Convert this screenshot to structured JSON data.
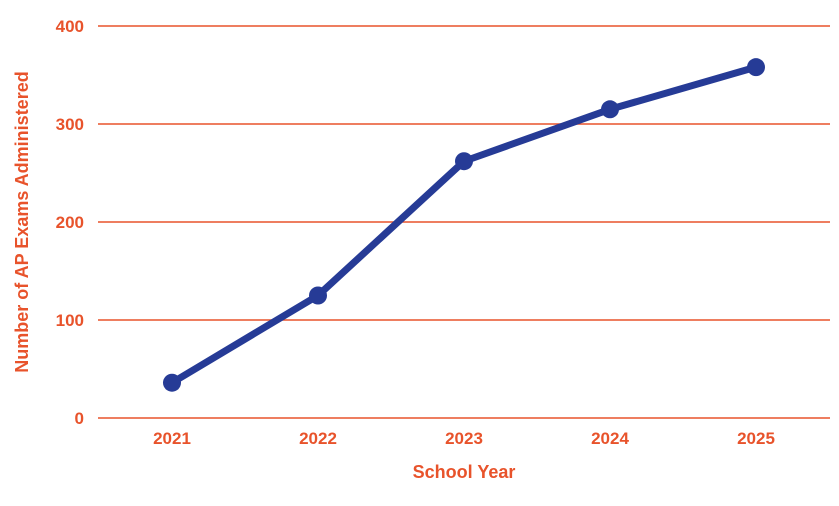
{
  "chart_data": {
    "type": "line",
    "title": "",
    "xlabel": "School Year",
    "ylabel": "Number of AP Exams Administered",
    "categories": [
      "2021",
      "2022",
      "2023",
      "2024",
      "2025"
    ],
    "series": [
      {
        "values": [
          36,
          125,
          262,
          315,
          358
        ]
      }
    ],
    "ylim": [
      0,
      400
    ],
    "yticks": [
      0,
      100,
      200,
      300,
      400
    ],
    "ytick_labels": [
      "0",
      "100",
      "200",
      "300",
      "400"
    ],
    "grid": true,
    "legend": "none"
  },
  "colors": {
    "text": "#E8532B",
    "grid": "#E8532B",
    "line": "#263B96",
    "marker": "#263B96"
  }
}
